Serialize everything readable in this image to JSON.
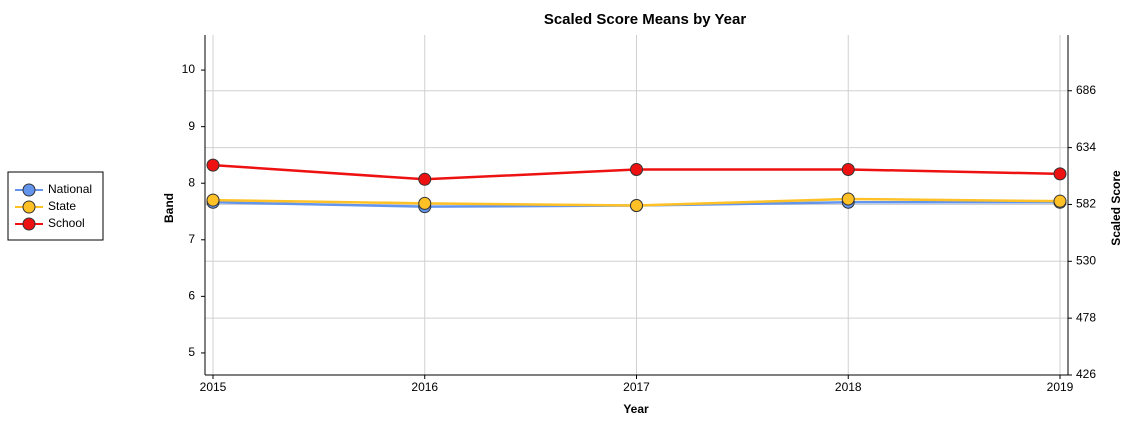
{
  "chart_data": {
    "type": "line",
    "title": "Scaled Score Means by Year",
    "x_label": "Year",
    "y_label": "Band",
    "y2_label": "Scaled Score",
    "categories": [
      "2015",
      "2016",
      "2017",
      "2018",
      "2019"
    ],
    "series": [
      {
        "name": "National",
        "color": "#6495ed",
        "axis": "y2",
        "values": [
          584,
          580,
          581,
          584,
          584
        ]
      },
      {
        "name": "State",
        "color": "#ffc125",
        "axis": "y2",
        "values": [
          586,
          583,
          581,
          587,
          585
        ]
      },
      {
        "name": "School",
        "color": "#ee1111",
        "axis": "y2",
        "values": [
          618,
          605,
          614,
          614,
          610
        ]
      }
    ],
    "ylim": [
      4.61,
      10.62
    ],
    "yticks": [
      5,
      6,
      7,
      8,
      9,
      10
    ],
    "y2lim": [
      426,
      737
    ],
    "y2ticks": [
      426,
      478,
      530,
      582,
      634,
      686
    ],
    "grid": true,
    "legend": "left"
  }
}
